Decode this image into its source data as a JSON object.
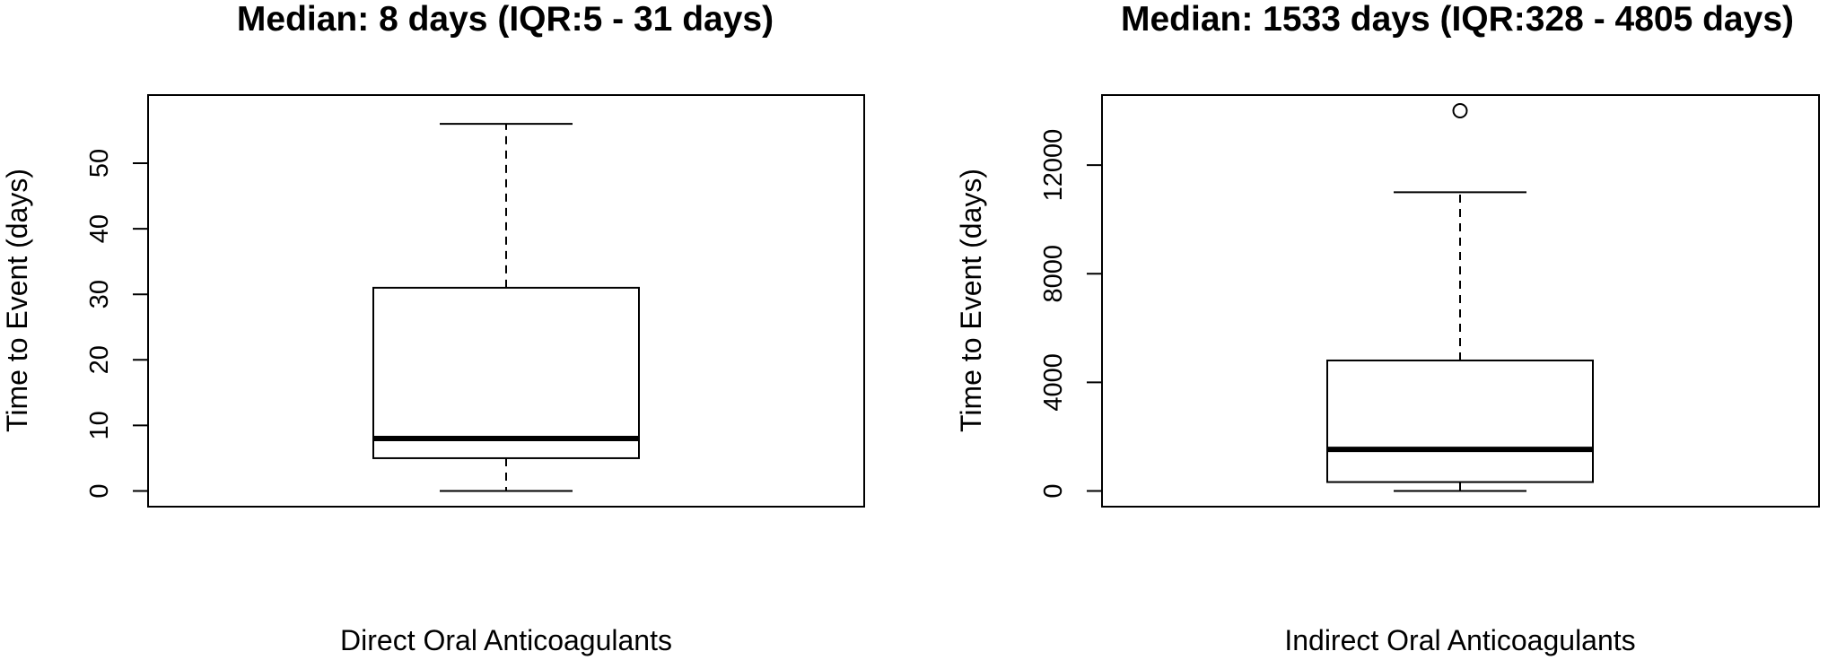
{
  "chart_data": [
    {
      "type": "box",
      "title": "Median: 8 days (IQR:5 - 31 days)",
      "xlabel": "Direct Oral Anticoagulants",
      "ylabel": "Time to Event (days)",
      "ylim": [
        0,
        58
      ],
      "yticks": [
        "0",
        "10",
        "20",
        "30",
        "40",
        "50"
      ],
      "grid": false,
      "box": {
        "min": 0,
        "q1": 5,
        "median": 8,
        "q3": 31,
        "max": 56,
        "outliers": []
      }
    },
    {
      "type": "box",
      "title": "Median: 1533 days (IQR:328 - 4805 days)",
      "xlabel": "Indirect Oral Anticoagulants",
      "ylabel": "Time to Event (days)",
      "ylim": [
        0,
        14000
      ],
      "yticks": [
        "0",
        "4000",
        "8000",
        "12000"
      ],
      "grid": false,
      "box": {
        "min": 0,
        "q1": 328,
        "median": 1533,
        "q3": 4805,
        "max": 11000,
        "outliers": [
          14000
        ]
      }
    }
  ]
}
